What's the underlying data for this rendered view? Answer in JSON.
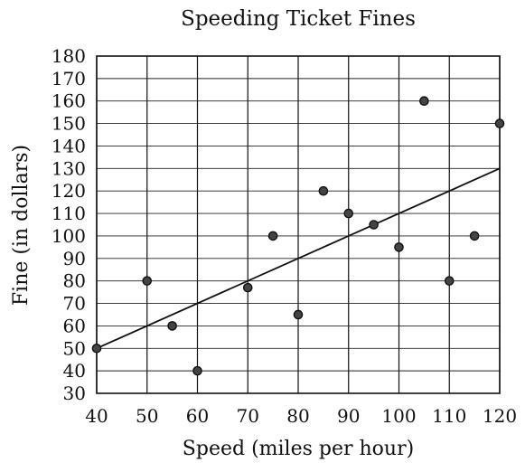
{
  "chart_data": {
    "type": "scatter",
    "title": "Speeding Ticket Fines",
    "xlabel": "Speed (miles per hour)",
    "ylabel": "Fine (in dollars)",
    "xlim": [
      40,
      120
    ],
    "ylim": [
      30,
      180
    ],
    "x_ticks": [
      40,
      50,
      60,
      70,
      80,
      90,
      100,
      110,
      120
    ],
    "y_ticks": [
      30,
      40,
      50,
      60,
      70,
      80,
      90,
      100,
      110,
      120,
      130,
      140,
      150,
      160,
      170,
      180
    ],
    "grid": true,
    "points": [
      {
        "x": 40,
        "y": 50
      },
      {
        "x": 50,
        "y": 80
      },
      {
        "x": 55,
        "y": 60
      },
      {
        "x": 60,
        "y": 40
      },
      {
        "x": 70,
        "y": 77
      },
      {
        "x": 75,
        "y": 100
      },
      {
        "x": 80,
        "y": 65
      },
      {
        "x": 85,
        "y": 120
      },
      {
        "x": 90,
        "y": 110
      },
      {
        "x": 95,
        "y": 105
      },
      {
        "x": 100,
        "y": 95
      },
      {
        "x": 105,
        "y": 160
      },
      {
        "x": 110,
        "y": 80
      },
      {
        "x": 115,
        "y": 100
      },
      {
        "x": 120,
        "y": 150
      }
    ],
    "trend_line": {
      "x": [
        40,
        120
      ],
      "y": [
        50,
        130
      ]
    }
  }
}
